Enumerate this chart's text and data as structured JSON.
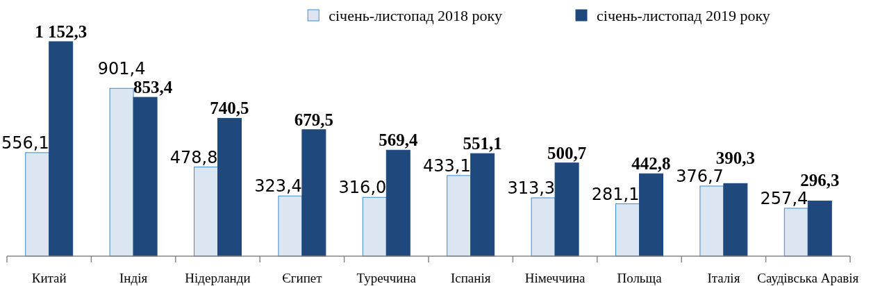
{
  "chart_data": {
    "type": "bar",
    "categories": [
      "Китай",
      "Індія",
      "Нідерланди",
      "Єгипет",
      "Туреччина",
      "Іспанія",
      "Німеччина",
      "Польща",
      "Італія",
      "Саудівська Аравія"
    ],
    "legend": "top",
    "series": [
      {
        "name": "січень-листопад 2018 року",
        "color": "#dce6f2",
        "values": [
          556.1,
          901.4,
          478.8,
          323.4,
          316.0,
          433.1,
          313.3,
          281.1,
          376.7,
          257.4
        ],
        "value_labels": [
          "556,1",
          "901,4",
          "478,8",
          "323,4",
          "316,0",
          "433,1",
          "313,3",
          "281,1",
          "376,7",
          "257,4"
        ]
      },
      {
        "name": "січень-листопад 2019 року",
        "color": "#1f497d",
        "values": [
          1152.3,
          853.4,
          740.5,
          679.5,
          569.4,
          551.1,
          500.7,
          442.8,
          390.3,
          296.3
        ],
        "value_labels": [
          "1 152,3",
          "853,4",
          "740,5",
          "679,5",
          "569,4",
          "551,1",
          "500,7",
          "442,8",
          "390,3",
          "296,3"
        ]
      }
    ]
  }
}
